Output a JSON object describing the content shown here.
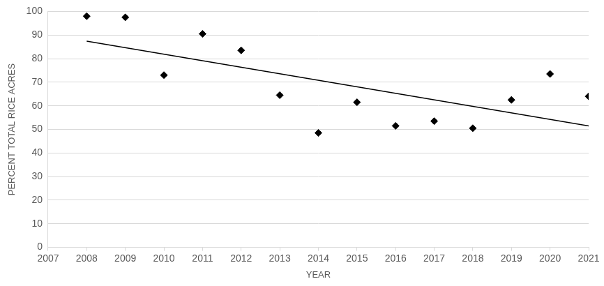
{
  "chart_data": {
    "type": "scatter",
    "x_label": "YEAR",
    "y_label": "PERCENT TOTAL RICE ACRES",
    "series": [
      {
        "color": "#000000",
        "marker": "diamond",
        "x": [
          2008,
          2009,
          2010,
          2011,
          2012,
          2013,
          2014,
          2015,
          2016,
          2017,
          2018,
          2019,
          2020,
          2021
        ],
        "values": [
          98,
          97.5,
          73,
          90.5,
          83.5,
          64.5,
          48.5,
          61.5,
          51.5,
          53.5,
          50.5,
          62.5,
          73.5,
          64
        ]
      },
      {
        "type": "line",
        "color": "#000000",
        "line_style": "solid",
        "x": [
          2008,
          2021
        ],
        "values": [
          87.4,
          51.5
        ]
      }
    ],
    "xlim": [
      2007,
      2021
    ],
    "xticks": [
      2007,
      2008,
      2009,
      2010,
      2011,
      2012,
      2013,
      2014,
      2015,
      2016,
      2017,
      2018,
      2019,
      2020,
      2021
    ],
    "ylim": [
      0,
      100
    ],
    "yticks": [
      0,
      10,
      20,
      30,
      40,
      50,
      60,
      70,
      80,
      90,
      100
    ],
    "grid": "y"
  }
}
